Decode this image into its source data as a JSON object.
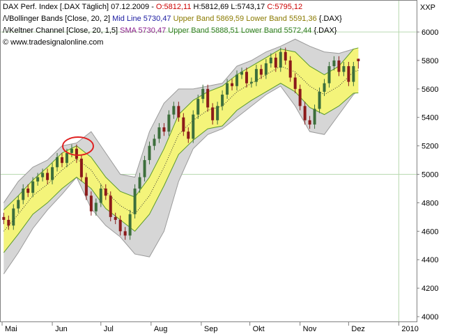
{
  "chart_data": {
    "type": "candlestick",
    "axis_title": "XXP",
    "header_lines": [
      [
        {
          "text": "DAX Perf. Index [.DAX  Täglich] 07.12.2009 - ",
          "color": "#000000"
        },
        {
          "text": "O:5812,11",
          "color": "#cc0000"
        },
        {
          "text": " H:5812,69 L:5743,17 ",
          "color": "#000000"
        },
        {
          "text": "C:5795,12",
          "color": "#cc0000"
        }
      ],
      [
        {
          "text": "/\\/Bollinger Bands [Close, 20, 2] ",
          "color": "#000000"
        },
        {
          "text": "Mid Line 5730,47 ",
          "color": "#1a1aa0"
        },
        {
          "text": "Upper Band 5869,59 Lower Band 5591,36 ",
          "color": "#8a7a00"
        },
        {
          "text": "{.DAX}",
          "color": "#000000"
        }
      ],
      [
        {
          "text": "/\\/Keltner Channel [Close, 20, 1,5] ",
          "color": "#000000"
        },
        {
          "text": "SMA 5730,47 ",
          "color": "#8a1a8a"
        },
        {
          "text": "Upper Band 5888,51 Lower Band 5572,44 ",
          "color": "#2e7d1e"
        },
        {
          "text": "{.DAX}",
          "color": "#000000"
        }
      ],
      [
        {
          "text": "© www.tradesignalonline.com",
          "color": "#000000"
        }
      ]
    ],
    "xlim": [
      -1.3,
      256
    ],
    "ylim": [
      3966,
      6225
    ],
    "xticks": [
      {
        "value": 0,
        "label": "Mai"
      },
      {
        "value": 31,
        "label": "Jun"
      },
      {
        "value": 61,
        "label": "Jul"
      },
      {
        "value": 92,
        "label": "Aug"
      },
      {
        "value": 123,
        "label": "Sep"
      },
      {
        "value": 153,
        "label": "Okt"
      },
      {
        "value": 184,
        "label": "Nov"
      },
      {
        "value": 214,
        "label": "Dez"
      },
      {
        "value": 245,
        "label": "2010"
      }
    ],
    "yticks": [
      4000,
      4200,
      4400,
      4600,
      4800,
      5000,
      5200,
      5400,
      5600,
      5800,
      6000
    ],
    "hlines": [
      5000,
      6000
    ],
    "vlines": [
      245
    ],
    "grid_color": "#b9d9b0",
    "up_color": "#3c6e3c",
    "down_color": "#8b1a1a",
    "x": [
      1,
      4,
      7,
      10,
      13,
      16,
      19,
      22,
      25,
      28,
      31,
      34,
      37,
      40,
      43,
      46,
      49,
      52,
      55,
      58,
      61,
      64,
      67,
      70,
      73,
      76,
      79,
      82,
      85,
      88,
      91,
      94,
      97,
      100,
      103,
      106,
      109,
      112,
      115,
      118,
      121,
      124,
      127,
      130,
      133,
      136,
      139,
      142,
      145,
      148,
      151,
      154,
      157,
      160,
      163,
      166,
      169,
      172,
      175,
      178,
      181,
      184,
      187,
      190,
      193,
      196,
      199,
      202,
      205,
      208,
      211,
      214,
      217,
      220
    ],
    "open": [
      4700,
      4680,
      4640,
      4760,
      4820,
      4900,
      4870,
      4950,
      4980,
      5010,
      4960,
      5050,
      5120,
      5080,
      5150,
      5180,
      5110,
      4980,
      4850,
      4740,
      4800,
      4900,
      4850,
      4700,
      4680,
      4600,
      4570,
      4720,
      4900,
      4980,
      5100,
      5200,
      5250,
      5330,
      5300,
      5420,
      5480,
      5400,
      5300,
      5250,
      5420,
      5530,
      5600,
      5470,
      5380,
      5480,
      5560,
      5640,
      5620,
      5700,
      5720,
      5640,
      5650,
      5740,
      5700,
      5780,
      5820,
      5750,
      5860,
      5800,
      5680,
      5600,
      5480,
      5380,
      5350,
      5460,
      5580,
      5640,
      5760,
      5800,
      5720,
      5760,
      5650,
      5812.11
    ],
    "high": [
      4730,
      4710,
      4790,
      4850,
      4930,
      4930,
      4980,
      5010,
      5040,
      5040,
      5080,
      5150,
      5150,
      5180,
      5210,
      5210,
      5140,
      5010,
      4880,
      4830,
      4930,
      4930,
      4880,
      4730,
      4710,
      4630,
      4750,
      4930,
      5010,
      5130,
      5230,
      5280,
      5360,
      5360,
      5450,
      5510,
      5510,
      5430,
      5330,
      5450,
      5560,
      5630,
      5630,
      5500,
      5510,
      5590,
      5670,
      5670,
      5730,
      5750,
      5750,
      5680,
      5770,
      5770,
      5810,
      5850,
      5850,
      5890,
      5890,
      5830,
      5710,
      5630,
      5510,
      5410,
      5490,
      5610,
      5670,
      5790,
      5830,
      5830,
      5790,
      5790,
      5790,
      5812.69
    ],
    "low": [
      4650,
      4610,
      4610,
      4730,
      4790,
      4840,
      4840,
      4920,
      4950,
      4930,
      4930,
      5020,
      5050,
      5050,
      5120,
      5080,
      4950,
      4820,
      4710,
      4710,
      4770,
      4820,
      4670,
      4650,
      4570,
      4540,
      4540,
      4690,
      4870,
      4950,
      5070,
      5170,
      5220,
      5270,
      5270,
      5390,
      5370,
      5270,
      5220,
      5220,
      5390,
      5500,
      5440,
      5350,
      5350,
      5450,
      5530,
      5590,
      5590,
      5670,
      5610,
      5610,
      5620,
      5670,
      5670,
      5750,
      5720,
      5720,
      5770,
      5650,
      5570,
      5450,
      5350,
      5320,
      5320,
      5430,
      5550,
      5610,
      5730,
      5690,
      5690,
      5620,
      5620,
      5743.17
    ],
    "close": [
      4680,
      4640,
      4760,
      4820,
      4900,
      4870,
      4950,
      4980,
      5010,
      4960,
      5050,
      5120,
      5080,
      5150,
      5180,
      5110,
      4980,
      4850,
      4740,
      4800,
      4900,
      4850,
      4700,
      4680,
      4600,
      4570,
      4720,
      4900,
      4980,
      5100,
      5200,
      5250,
      5330,
      5300,
      5420,
      5480,
      5400,
      5300,
      5250,
      5420,
      5530,
      5600,
      5470,
      5380,
      5480,
      5560,
      5640,
      5620,
      5700,
      5720,
      5640,
      5650,
      5740,
      5700,
      5780,
      5820,
      5750,
      5860,
      5800,
      5680,
      5600,
      5480,
      5380,
      5350,
      5460,
      5580,
      5640,
      5760,
      5800,
      5720,
      5760,
      5650,
      5760,
      5795.12
    ],
    "bands": {
      "x": [
        1,
        10,
        19,
        28,
        37,
        46,
        55,
        64,
        73,
        82,
        91,
        100,
        109,
        118,
        127,
        136,
        145,
        154,
        163,
        172,
        181,
        190,
        199,
        208,
        217,
        220
      ],
      "bollinger": {
        "fill": "#d6d6d6",
        "line": "#9a9a9a",
        "mid_color": "#333333",
        "upper": [
          4800,
          4950,
          5050,
          5100,
          5200,
          5220,
          5300,
          5150,
          5000,
          4980,
          5300,
          5500,
          5600,
          5600,
          5620,
          5640,
          5760,
          5800,
          5860,
          5900,
          5950,
          5900,
          5860,
          5850,
          5880,
          5869.59
        ],
        "mid": [
          4600,
          4720,
          4850,
          4930,
          5030,
          5110,
          5030,
          4880,
          4780,
          4720,
          4850,
          5050,
          5280,
          5380,
          5450,
          5480,
          5580,
          5640,
          5700,
          5760,
          5720,
          5620,
          5560,
          5620,
          5720,
          5730.47
        ],
        "lower": [
          4300,
          4450,
          4620,
          4750,
          4860,
          4980,
          4760,
          4640,
          4560,
          4440,
          4420,
          4600,
          4950,
          5180,
          5280,
          5320,
          5400,
          5480,
          5560,
          5620,
          5480,
          5300,
          5280,
          5420,
          5560,
          5591.36
        ]
      },
      "keltner": {
        "fill": "#f4f47a",
        "line": "#5c9a2c",
        "upper": [
          4750,
          4850,
          4960,
          5050,
          5150,
          5200,
          5120,
          4980,
          4880,
          4840,
          4980,
          5180,
          5420,
          5520,
          5580,
          5620,
          5700,
          5760,
          5820,
          5880,
          5860,
          5760,
          5700,
          5760,
          5880,
          5888.51
        ],
        "lower": [
          4450,
          4580,
          4720,
          4800,
          4900,
          4980,
          4900,
          4760,
          4680,
          4600,
          4720,
          4920,
          5140,
          5240,
          5320,
          5340,
          5450,
          5520,
          5580,
          5640,
          5580,
          5470,
          5420,
          5480,
          5570,
          5572.44
        ]
      }
    }
  }
}
